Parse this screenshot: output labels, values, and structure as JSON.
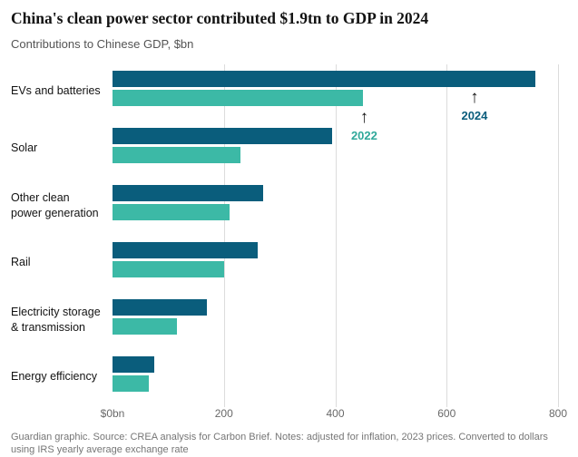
{
  "header": {
    "title": "China's clean power sector contributed $1.9tn to GDP in 2024",
    "subtitle": "Contributions to Chinese GDP, $bn"
  },
  "chart_data": {
    "type": "bar",
    "orientation": "horizontal",
    "title": "China's clean power sector contributed $1.9tn to GDP in 2024",
    "subtitle": "Contributions to Chinese GDP, $bn",
    "xlabel": "$bn",
    "xlim": [
      0,
      800
    ],
    "x_ticks": [
      "$0bn",
      "200",
      "400",
      "600",
      "800"
    ],
    "x_tick_values": [
      0,
      200,
      400,
      600,
      800
    ],
    "grid": "vertical",
    "categories": [
      "EVs and batteries",
      "Solar",
      "Other clean power generation",
      "Rail",
      "Electricity storage & transmission",
      "Energy efficiency"
    ],
    "series": [
      {
        "name": "2024",
        "color": "#0a5d7c",
        "values": [
          760,
          395,
          270,
          260,
          170,
          75
        ]
      },
      {
        "name": "2022",
        "color": "#3cb9a6",
        "values": [
          450,
          230,
          210,
          200,
          115,
          65
        ]
      }
    ],
    "annotations": [
      {
        "label": "2022",
        "color": "#2fa89a",
        "x": 452
      },
      {
        "label": "2024",
        "color": "#0a5d7c",
        "x": 650
      }
    ],
    "colors": {
      "gridline": "#dcdcdc",
      "arrow": "#121212"
    }
  },
  "footer": {
    "text": "Guardian graphic. Source: CREA analysis for Carbon Brief. Notes: adjusted for inflation, 2023 prices. Converted to dollars using IRS yearly average exchange rate"
  }
}
